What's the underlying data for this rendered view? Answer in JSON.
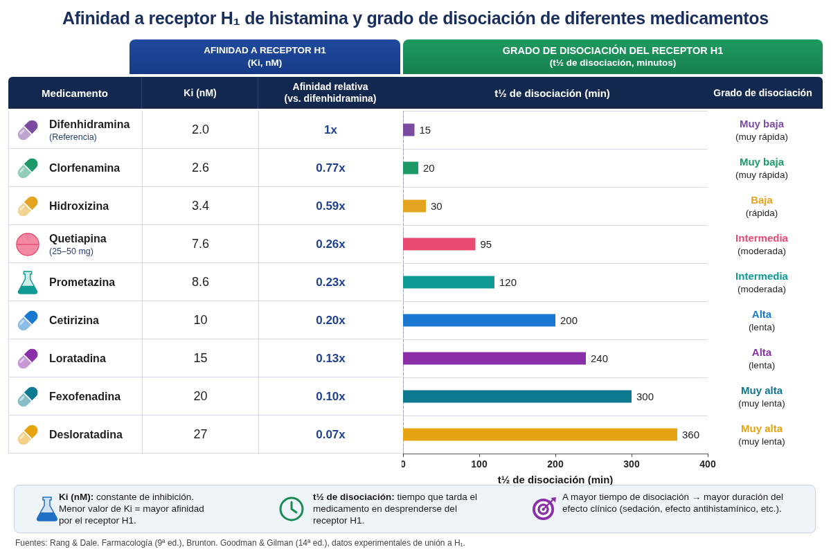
{
  "chart_data": [
    {
      "type": "other",
      "title": "Afinidad a receptor H₁ de histamina y grado de disociación de diferentes medicamentos"
    },
    {
      "type": "other",
      "subtitle": "AFINIDAD A RECEPTOR H1\n(Ki, nM)",
      "ylabel": "Medicamento",
      "categories": [
        "Difenhidramina",
        "Clorfenamina",
        "Hidroxizina",
        "Quetiapina",
        "Prometazina",
        "Cetirizina",
        "Loratadina",
        "Fexofenadina",
        "Desloratadina"
      ],
      "annotations": [
        {
          "text": "(Referencia)",
          "y": "Difenhidramina"
        },
        {
          "text": "(25–50 mg)",
          "y": "Quetiapina"
        }
      ],
      "series": [
        {
          "name": "Ki (nM)",
          "values": [
            2.0,
            2.6,
            3.4,
            7.6,
            8.6,
            10,
            15,
            20,
            27
          ],
          "value_labels": [
            "2.0",
            "2.6",
            "3.4",
            "7.6",
            "8.6",
            "10",
            "15",
            "20",
            "27"
          ]
        },
        {
          "name": "Afinidad relativa\n(vs. difenhidramina)",
          "values": [
            1,
            0.77,
            0.59,
            0.26,
            0.23,
            0.2,
            0.13,
            0.1,
            0.07
          ],
          "value_labels": [
            "1x",
            "0.77x",
            "0.59x",
            "0.26x",
            "0.23x",
            "0.20x",
            "0.13x",
            "0.10x",
            "0.07x"
          ]
        }
      ]
    },
    {
      "type": "bar",
      "orientation": "horizontal",
      "title": "GRADO DE DISOCIACIÓN DEL RECEPTOR H1",
      "subtitle": "(t½ de disociación, minutos)",
      "annotations": [
        "t½ de disociación (min)"
      ],
      "xlabel": "t½ de disociación (min)",
      "y2label": "Grado de disociación",
      "categories": [
        null,
        null,
        null,
        null,
        null,
        null,
        null,
        null,
        null
      ],
      "y2_categories": [
        "Muy baja\n(muy rápida)",
        "Muy baja\n(muy rápida)",
        "Baja\n(rápida)",
        "Intermedia\n(moderada)",
        "Intermedia\n(moderada)",
        "Alta\n(lenta)",
        "Alta\n(lenta)",
        "Muy alta\n(muy lenta)",
        "Muy alta\n(muy lenta)"
      ],
      "values": [
        15,
        20,
        30,
        95,
        120,
        200,
        240,
        300,
        360
      ],
      "colors": [
        "#7a4ba0",
        "#1e9a68",
        "#e3a520",
        "#e94a72",
        "#0f9a94",
        "#1a78d0",
        "#8a2fa8",
        "#0e7a92",
        "#e6a312"
      ],
      "xlim": [
        0,
        400
      ],
      "xticks": [
        0,
        100,
        200,
        300,
        400
      ],
      "data_labels": true,
      "grid": "y"
    },
    {
      "type": "other",
      "annotations": [
        "Ki (nM): constante de inhibición. Menor valor de Ki = mayor afinidad por el receptor H1.",
        "t½ de disociación: tiempo que tarda el medicamento en desprenderse del receptor H1.",
        "A mayor tiempo de disociación → mayor duración del efecto clínico (sedación, efecto antihistamínico, etc.).",
        "Fuentes: Rang & Dale. Farmacología (9ª ed.), Brunton. Goodman & Gilman (14ª ed.), datos experimentales de unión a H₁."
      ]
    }
  ]
}
